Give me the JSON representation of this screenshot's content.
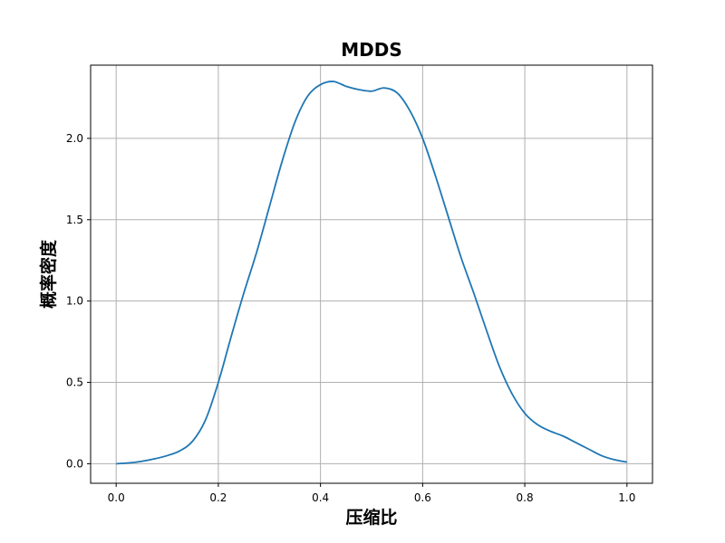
{
  "chart_data": {
    "type": "line",
    "title": "MDDS",
    "xlabel": "压缩比",
    "ylabel": "概率密度",
    "xlim": [
      -0.05,
      1.05
    ],
    "ylim": [
      -0.12,
      2.45
    ],
    "x_ticks": [
      "0.0",
      "0.2",
      "0.4",
      "0.6",
      "0.8",
      "1.0"
    ],
    "x_tick_values": [
      0.0,
      0.2,
      0.4,
      0.6,
      0.8,
      1.0
    ],
    "y_ticks": [
      "0.0",
      "0.5",
      "1.0",
      "1.5",
      "2.0"
    ],
    "y_tick_values": [
      0.0,
      0.5,
      1.0,
      1.5,
      2.0
    ],
    "grid": true,
    "line_color": "#1f77b4",
    "series": [
      {
        "x": [
          0.0,
          0.025,
          0.05,
          0.075,
          0.1,
          0.125,
          0.15,
          0.175,
          0.2,
          0.225,
          0.25,
          0.275,
          0.3,
          0.325,
          0.35,
          0.375,
          0.4,
          0.425,
          0.45,
          0.475,
          0.5,
          0.525,
          0.55,
          0.575,
          0.6,
          0.625,
          0.65,
          0.675,
          0.7,
          0.725,
          0.75,
          0.775,
          0.8,
          0.825,
          0.85,
          0.875,
          0.9,
          0.925,
          0.95,
          0.975,
          1.0
        ],
        "y": [
          0.0,
          0.005,
          0.015,
          0.03,
          0.05,
          0.08,
          0.14,
          0.27,
          0.5,
          0.78,
          1.05,
          1.3,
          1.58,
          1.86,
          2.1,
          2.26,
          2.33,
          2.35,
          2.32,
          2.3,
          2.29,
          2.31,
          2.28,
          2.17,
          2.0,
          1.77,
          1.52,
          1.27,
          1.05,
          0.82,
          0.6,
          0.43,
          0.31,
          0.24,
          0.2,
          0.17,
          0.13,
          0.09,
          0.05,
          0.025,
          0.01
        ]
      }
    ]
  }
}
